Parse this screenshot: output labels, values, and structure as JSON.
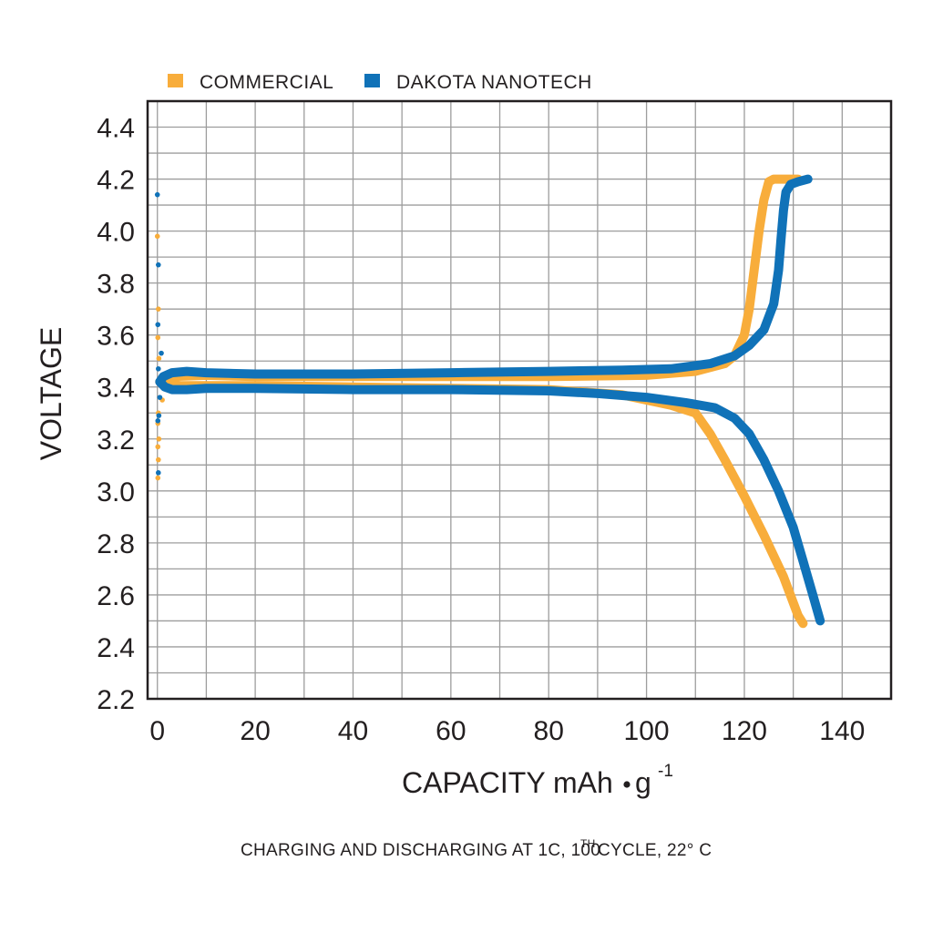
{
  "chart_data": {
    "type": "line",
    "xlabel": "CAPACITY mAh",
    "xlabel_unit_suffix": "g",
    "xlabel_exponent": "-1",
    "ylabel": "VOLTAGE",
    "caption_part1": "CHARGING AND DISCHARGING AT 1C, 100",
    "caption_sup": "TH",
    "caption_part2": " CYCLE, 22° C",
    "xlim": [
      -2,
      150
    ],
    "ylim": [
      2.2,
      4.5
    ],
    "x_ticks": [
      0,
      20,
      40,
      60,
      80,
      100,
      120,
      140
    ],
    "x_tick_labels": [
      "0",
      "20",
      "40",
      "60",
      "80",
      "100",
      "120",
      "140"
    ],
    "y_ticks": [
      2.2,
      2.4,
      2.6,
      2.8,
      3.0,
      3.2,
      3.4,
      3.6,
      3.8,
      4.0,
      4.2,
      4.4
    ],
    "y_tick_labels": [
      "2.2",
      "2.4",
      "2.6",
      "2.8",
      "3.0",
      "3.2",
      "3.4",
      "3.6",
      "3.8",
      "4.0",
      "4.2",
      "4.4"
    ],
    "grid": true,
    "legend_position": "top-left",
    "colors": {
      "commercial": "#f8ad3b",
      "dakota": "#1072b8",
      "grid": "#9d9d9d",
      "text": "#231f20"
    },
    "series": [
      {
        "name": "COMMERCIAL",
        "color": "#f8ad3b",
        "charge": [
          [
            0.5,
            3.42
          ],
          [
            3,
            3.44
          ],
          [
            10,
            3.445
          ],
          [
            20,
            3.44
          ],
          [
            40,
            3.44
          ],
          [
            60,
            3.44
          ],
          [
            80,
            3.44
          ],
          [
            100,
            3.445
          ],
          [
            110,
            3.46
          ],
          [
            116,
            3.49
          ],
          [
            118,
            3.52
          ],
          [
            120,
            3.6
          ],
          [
            121,
            3.7
          ],
          [
            122,
            3.85
          ],
          [
            123,
            4.0
          ],
          [
            124,
            4.12
          ],
          [
            125,
            4.19
          ],
          [
            126,
            4.2
          ],
          [
            128,
            4.2
          ],
          [
            131,
            4.2
          ]
        ],
        "discharge": [
          [
            0.5,
            3.42
          ],
          [
            2,
            3.41
          ],
          [
            5,
            3.405
          ],
          [
            20,
            3.405
          ],
          [
            40,
            3.4
          ],
          [
            60,
            3.395
          ],
          [
            80,
            3.39
          ],
          [
            95,
            3.37
          ],
          [
            105,
            3.33
          ],
          [
            110,
            3.3
          ],
          [
            113,
            3.22
          ],
          [
            116,
            3.12
          ],
          [
            120,
            2.98
          ],
          [
            124,
            2.83
          ],
          [
            128,
            2.67
          ],
          [
            131,
            2.52
          ],
          [
            132,
            2.49
          ]
        ],
        "points": [
          [
            0,
            3.98
          ],
          [
            0.2,
            3.7
          ],
          [
            0.1,
            3.59
          ],
          [
            0.3,
            3.51
          ],
          [
            0.2,
            3.3
          ],
          [
            0.1,
            3.26
          ],
          [
            0.3,
            3.2
          ],
          [
            0.1,
            3.17
          ],
          [
            0.2,
            3.12
          ],
          [
            0.1,
            3.05
          ],
          [
            1,
            3.35
          ]
        ]
      },
      {
        "name": "DAKOTA NANOTECH",
        "color": "#1072b8",
        "charge": [
          [
            0.5,
            3.42
          ],
          [
            1.2,
            3.44
          ],
          [
            3,
            3.455
          ],
          [
            6,
            3.46
          ],
          [
            10,
            3.455
          ],
          [
            20,
            3.45
          ],
          [
            40,
            3.45
          ],
          [
            60,
            3.455
          ],
          [
            80,
            3.46
          ],
          [
            95,
            3.465
          ],
          [
            105,
            3.47
          ],
          [
            113,
            3.49
          ],
          [
            118,
            3.52
          ],
          [
            121,
            3.56
          ],
          [
            124,
            3.62
          ],
          [
            126,
            3.72
          ],
          [
            127,
            3.85
          ],
          [
            127.5,
            3.97
          ],
          [
            128,
            4.08
          ],
          [
            128.5,
            4.15
          ],
          [
            129.5,
            4.18
          ],
          [
            131,
            4.19
          ],
          [
            133,
            4.2
          ]
        ],
        "discharge": [
          [
            0.5,
            3.42
          ],
          [
            1.5,
            3.4
          ],
          [
            3,
            3.39
          ],
          [
            6,
            3.39
          ],
          [
            10,
            3.395
          ],
          [
            20,
            3.395
          ],
          [
            40,
            3.39
          ],
          [
            60,
            3.39
          ],
          [
            80,
            3.385
          ],
          [
            90,
            3.375
          ],
          [
            100,
            3.36
          ],
          [
            108,
            3.34
          ],
          [
            114,
            3.32
          ],
          [
            118,
            3.28
          ],
          [
            121,
            3.22
          ],
          [
            124,
            3.12
          ],
          [
            127,
            3.0
          ],
          [
            130,
            2.86
          ],
          [
            132,
            2.73
          ],
          [
            134,
            2.6
          ],
          [
            135.5,
            2.5
          ]
        ],
        "points": [
          [
            0,
            4.14
          ],
          [
            0.2,
            3.87
          ],
          [
            0.1,
            3.64
          ],
          [
            0.8,
            3.53
          ],
          [
            0.2,
            3.47
          ],
          [
            0.5,
            3.36
          ],
          [
            0.3,
            3.29
          ],
          [
            0.1,
            3.27
          ],
          [
            0.2,
            3.07
          ]
        ]
      }
    ]
  }
}
